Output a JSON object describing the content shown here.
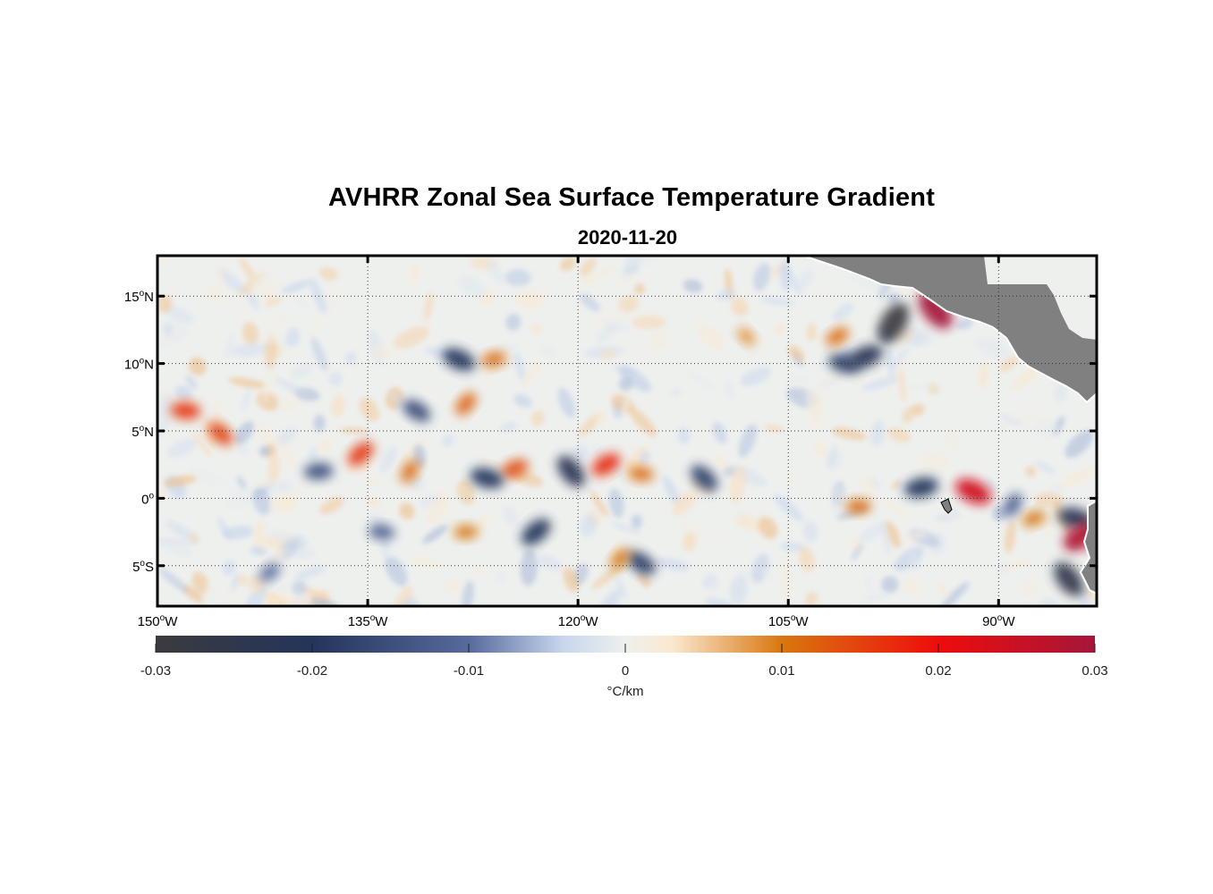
{
  "title": "AVHRR Zonal Sea Surface Temperature Gradient",
  "subtitle": "2020-11-20",
  "map": {
    "lon_range": [
      -150,
      -83
    ],
    "lat_range": [
      -8,
      18
    ],
    "x_ticks": [
      {
        "lon": -150,
        "text": "150",
        "sup": "o",
        "hem": "W"
      },
      {
        "lon": -135,
        "text": "135",
        "sup": "o",
        "hem": "W"
      },
      {
        "lon": -120,
        "text": "120",
        "sup": "o",
        "hem": "W"
      },
      {
        "lon": -105,
        "text": "105",
        "sup": "o",
        "hem": "W"
      },
      {
        "lon": -90,
        "text": "90",
        "sup": "o",
        "hem": "W"
      }
    ],
    "y_ticks": [
      {
        "lat": 15,
        "text": "15",
        "sup": "o",
        "hem": "N"
      },
      {
        "lat": 10,
        "text": "10",
        "sup": "o",
        "hem": "N"
      },
      {
        "lat": 5,
        "text": "5",
        "sup": "o",
        "hem": "N"
      },
      {
        "lat": 0,
        "text": "0",
        "sup": "o",
        "hem": ""
      },
      {
        "lat": -5,
        "text": "5",
        "sup": "o",
        "hem": "S"
      }
    ],
    "grid": true,
    "colors": {
      "land": "#808080",
      "ocean": "#eef0ee",
      "frame": "#000000"
    }
  },
  "colorbar": {
    "ticks": [
      "-0.03",
      "-0.02",
      "-0.01",
      "0",
      "0.01",
      "0.02",
      "0.03"
    ],
    "range": [
      -0.03,
      0.03
    ],
    "label": "°C/km",
    "colormap": [
      {
        "v": -0.03,
        "c": "#3b3b3f"
      },
      {
        "v": -0.02,
        "c": "#24345b"
      },
      {
        "v": -0.01,
        "c": "#566a9c"
      },
      {
        "v": -0.004,
        "c": "#c7d6ee"
      },
      {
        "v": 0.0,
        "c": "#eef0ee"
      },
      {
        "v": 0.003,
        "c": "#fbe8cf"
      },
      {
        "v": 0.01,
        "c": "#d9770f"
      },
      {
        "v": 0.02,
        "c": "#ee0c0c"
      },
      {
        "v": 0.03,
        "c": "#a5163a"
      }
    ]
  },
  "features": [
    {
      "kind": "neg",
      "lon": -97.5,
      "lat": 13.0,
      "v": -0.03
    },
    {
      "kind": "neg",
      "lon": -99.5,
      "lat": 10.5,
      "v": -0.022
    },
    {
      "kind": "neg",
      "lon": -101.0,
      "lat": 10.0,
      "v": -0.018
    },
    {
      "kind": "pos",
      "lon": -94.5,
      "lat": 14.0,
      "v": 0.03
    },
    {
      "kind": "pos",
      "lon": -101.5,
      "lat": 12.0,
      "v": 0.011
    },
    {
      "kind": "pos",
      "lon": -148.0,
      "lat": 6.5,
      "v": 0.016
    },
    {
      "kind": "pos",
      "lon": -145.5,
      "lat": 4.8,
      "v": 0.015
    },
    {
      "kind": "pos",
      "lon": -135.5,
      "lat": 3.3,
      "v": 0.016
    },
    {
      "kind": "neg",
      "lon": -138.5,
      "lat": 2.0,
      "v": -0.015
    },
    {
      "kind": "neg",
      "lon": -131.5,
      "lat": 6.5,
      "v": -0.016
    },
    {
      "kind": "pos",
      "lon": -128.0,
      "lat": 7.0,
      "v": 0.012
    },
    {
      "kind": "pos",
      "lon": -126.0,
      "lat": 10.3,
      "v": 0.011
    },
    {
      "kind": "neg",
      "lon": -128.5,
      "lat": 10.3,
      "v": -0.02
    },
    {
      "kind": "pos",
      "lon": -132.0,
      "lat": 2.0,
      "v": 0.011
    },
    {
      "kind": "pos",
      "lon": -124.5,
      "lat": 2.2,
      "v": 0.014
    },
    {
      "kind": "neg",
      "lon": -126.5,
      "lat": 1.5,
      "v": -0.02
    },
    {
      "kind": "neg",
      "lon": -120.5,
      "lat": 2.0,
      "v": -0.022
    },
    {
      "kind": "pos",
      "lon": -118.0,
      "lat": 2.5,
      "v": 0.017
    },
    {
      "kind": "pos",
      "lon": -115.5,
      "lat": 1.8,
      "v": 0.011
    },
    {
      "kind": "neg",
      "lon": -111.0,
      "lat": 1.5,
      "v": -0.018
    },
    {
      "kind": "neg",
      "lon": -123.0,
      "lat": -2.5,
      "v": -0.02
    },
    {
      "kind": "pos",
      "lon": -128.0,
      "lat": -2.5,
      "v": 0.01
    },
    {
      "kind": "neg",
      "lon": -115.5,
      "lat": -4.8,
      "v": -0.018
    },
    {
      "kind": "pos",
      "lon": -117.0,
      "lat": -4.5,
      "v": 0.01
    },
    {
      "kind": "neg",
      "lon": -95.5,
      "lat": 0.8,
      "v": -0.02
    },
    {
      "kind": "pos",
      "lon": -91.8,
      "lat": 0.5,
      "v": 0.024
    },
    {
      "kind": "neg",
      "lon": -89.0,
      "lat": -0.5,
      "v": -0.012
    },
    {
      "kind": "pos",
      "lon": -87.5,
      "lat": -1.5,
      "v": 0.01
    },
    {
      "kind": "neg",
      "lon": -84.5,
      "lat": -1.5,
      "v": -0.022
    },
    {
      "kind": "neg",
      "lon": -85.0,
      "lat": -6.0,
      "v": -0.025
    },
    {
      "kind": "pos",
      "lon": -84.0,
      "lat": -2.8,
      "v": 0.028
    },
    {
      "kind": "neg",
      "lon": -134.0,
      "lat": -2.5,
      "v": -0.012
    },
    {
      "kind": "pos",
      "lon": -108.0,
      "lat": 12.0,
      "v": 0.008
    },
    {
      "kind": "neg",
      "lon": -142.0,
      "lat": -5.5,
      "v": -0.01
    },
    {
      "kind": "pos",
      "lon": -100.0,
      "lat": -0.6,
      "v": 0.011
    }
  ]
}
